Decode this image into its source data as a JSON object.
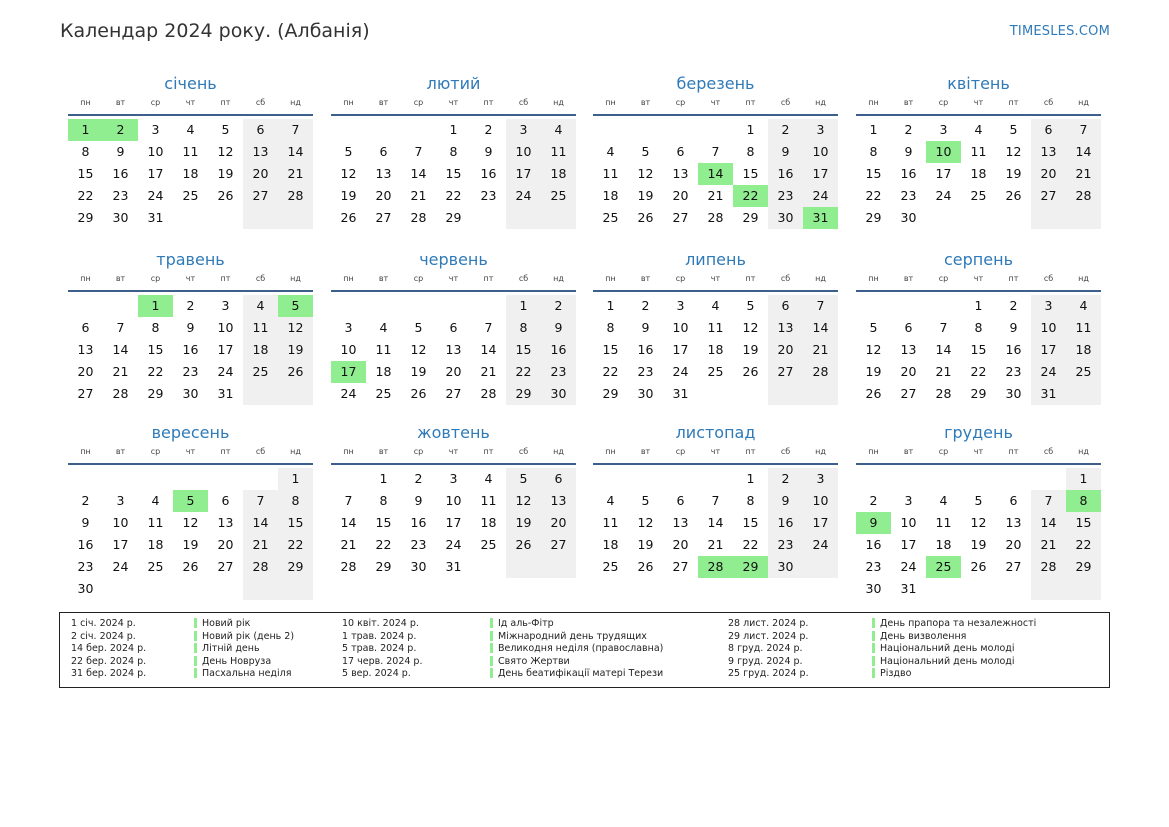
{
  "header": {
    "title": "Календар 2024 року. (Албанія)",
    "brand": "TIMESLES.COM"
  },
  "weekdays": [
    "пн",
    "вт",
    "ср",
    "чт",
    "пт",
    "сб",
    "нд"
  ],
  "colors": {
    "holiday": "#90ee90",
    "weekend": "#f0f0f0",
    "accent": "#2f7ab8",
    "rule": "#3d5f8c"
  },
  "months": [
    {
      "name": "січень",
      "offset": 0,
      "days": 31,
      "holidays": [
        1,
        2
      ]
    },
    {
      "name": "лютий",
      "offset": 3,
      "days": 29,
      "holidays": []
    },
    {
      "name": "березень",
      "offset": 4,
      "days": 31,
      "holidays": [
        14,
        22,
        31
      ]
    },
    {
      "name": "квітень",
      "offset": 0,
      "days": 30,
      "holidays": [
        10
      ]
    },
    {
      "name": "травень",
      "offset": 2,
      "days": 31,
      "holidays": [
        1,
        5
      ]
    },
    {
      "name": "червень",
      "offset": 5,
      "days": 30,
      "holidays": [
        17
      ]
    },
    {
      "name": "липень",
      "offset": 0,
      "days": 31,
      "holidays": []
    },
    {
      "name": "серпень",
      "offset": 3,
      "days": 31,
      "holidays": []
    },
    {
      "name": "вересень",
      "offset": 6,
      "days": 30,
      "holidays": [
        5
      ]
    },
    {
      "name": "жовтень",
      "offset": 1,
      "days": 31,
      "holidays": []
    },
    {
      "name": "листопад",
      "offset": 4,
      "days": 30,
      "holidays": [
        28,
        29
      ]
    },
    {
      "name": "грудень",
      "offset": 6,
      "days": 31,
      "holidays": [
        8,
        9,
        25
      ]
    }
  ],
  "legend": {
    "col1": [
      {
        "date": "1 січ. 2024 р.",
        "name": "Новий рік"
      },
      {
        "date": "2 січ. 2024 р.",
        "name": "Новий рік (день 2)"
      },
      {
        "date": "14 бер. 2024 р.",
        "name": "Літній день"
      },
      {
        "date": "22 бер. 2024 р.",
        "name": "День Новруза"
      },
      {
        "date": "31 бер. 2024 р.",
        "name": "Пасхальна неділя"
      }
    ],
    "col2": [
      {
        "date": "10 квіт. 2024 р.",
        "name": "Ід аль-Фітр"
      },
      {
        "date": "1 трав. 2024 р.",
        "name": "Міжнародний день трудящих"
      },
      {
        "date": "5 трав. 2024 р.",
        "name": "Великодня неділя (православна)"
      },
      {
        "date": "17 черв. 2024 р.",
        "name": "Свято Жертви"
      },
      {
        "date": "5 вер. 2024 р.",
        "name": "День беатифікації матері Терези"
      }
    ],
    "col3": [
      {
        "date": "28 лист. 2024 р.",
        "name": "День прапора та незалежності"
      },
      {
        "date": "29 лист. 2024 р.",
        "name": "День визволення"
      },
      {
        "date": "8 груд. 2024 р.",
        "name": "Національний день молоді"
      },
      {
        "date": "9 груд. 2024 р.",
        "name": "Національний день молоді"
      },
      {
        "date": "25 груд. 2024 р.",
        "name": "Різдво"
      }
    ]
  }
}
